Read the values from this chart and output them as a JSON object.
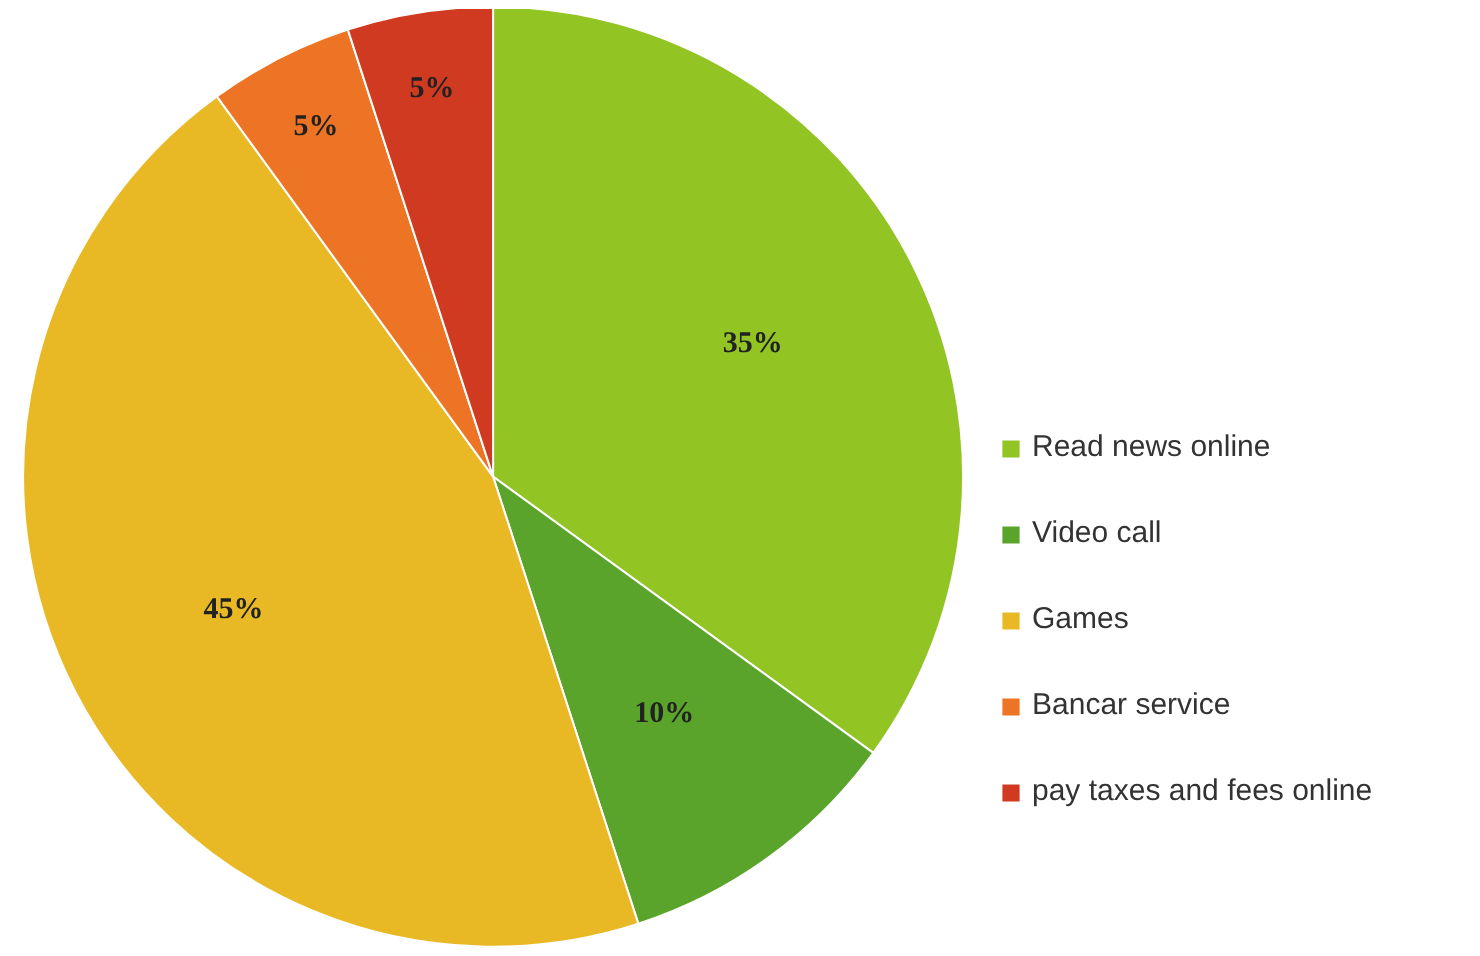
{
  "chart_data": {
    "type": "pie",
    "categories": [
      "Read news online",
      "Video call",
      "Games",
      "Bancar service",
      "pay taxes and fees online"
    ],
    "values": [
      35,
      10,
      45,
      5,
      5
    ],
    "colors": [
      "#92c423",
      "#5ba42b",
      "#e9b925",
      "#ec7424",
      "#cf3a20"
    ],
    "value_labels": [
      "35%",
      "10%",
      "45%",
      "5%",
      "5%"
    ],
    "legend": "right"
  }
}
